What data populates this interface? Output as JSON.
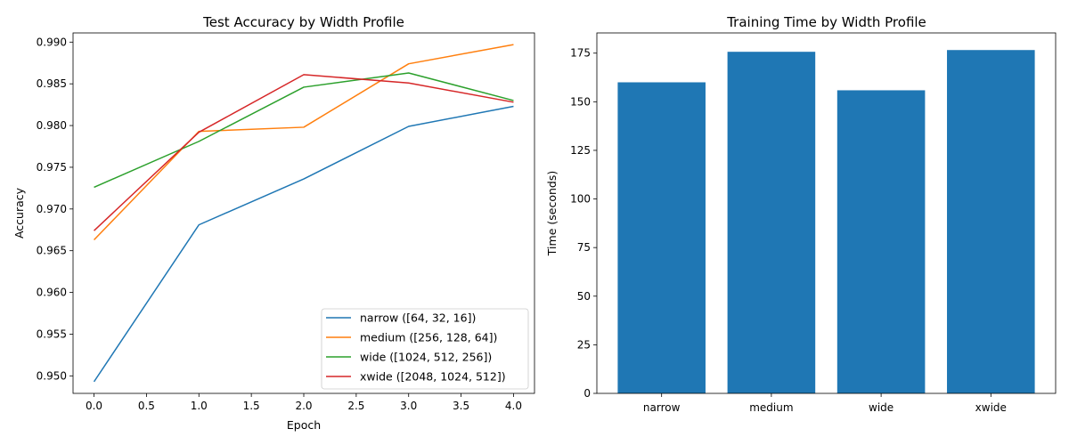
{
  "chart_data": [
    {
      "type": "line",
      "title": "Test Accuracy by Width Profile",
      "xlabel": "Epoch",
      "ylabel": "Accuracy",
      "x": [
        0,
        1,
        2,
        3,
        4
      ],
      "xlim": [
        -0.2,
        4.2
      ],
      "ylim": [
        0.9479,
        0.9911
      ],
      "xticks": [
        0.0,
        0.5,
        1.0,
        1.5,
        2.0,
        2.5,
        3.0,
        3.5,
        4.0
      ],
      "xtick_labels": [
        "0.0",
        "0.5",
        "1.0",
        "1.5",
        "2.0",
        "2.5",
        "3.0",
        "3.5",
        "4.0"
      ],
      "yticks": [
        0.95,
        0.955,
        0.96,
        0.965,
        0.97,
        0.975,
        0.98,
        0.985,
        0.99
      ],
      "ytick_labels": [
        "0.950",
        "0.955",
        "0.960",
        "0.965",
        "0.970",
        "0.975",
        "0.980",
        "0.985",
        "0.990"
      ],
      "grid": false,
      "legend_position": "lower-right",
      "series": [
        {
          "name": "narrow ([64, 32, 16])",
          "color": "#1f77b4",
          "values": [
            0.9493,
            0.9681,
            0.9736,
            0.9799,
            0.9823
          ]
        },
        {
          "name": "medium ([256, 128, 64])",
          "color": "#ff7f0e",
          "values": [
            0.9663,
            0.9793,
            0.9798,
            0.9874,
            0.9897
          ]
        },
        {
          "name": "wide ([1024, 512, 256])",
          "color": "#2ca02c",
          "values": [
            0.9726,
            0.9781,
            0.9846,
            0.9863,
            0.983
          ]
        },
        {
          "name": "xwide ([2048, 1024, 512])",
          "color": "#d62728",
          "values": [
            0.9674,
            0.9792,
            0.9861,
            0.9851,
            0.9828
          ]
        }
      ]
    },
    {
      "type": "bar",
      "title": "Training Time by Width Profile",
      "xlabel": "",
      "ylabel": "Time (seconds)",
      "categories": [
        "narrow",
        "medium",
        "wide",
        "xwide"
      ],
      "values": [
        160.0,
        175.7,
        155.9,
        176.6
      ],
      "color": "#1f77b4",
      "ylim": [
        0,
        185.4
      ],
      "yticks": [
        0,
        25,
        50,
        75,
        100,
        125,
        150,
        175
      ],
      "ytick_labels": [
        "0",
        "25",
        "50",
        "75",
        "100",
        "125",
        "150",
        "175"
      ],
      "grid": false
    }
  ]
}
